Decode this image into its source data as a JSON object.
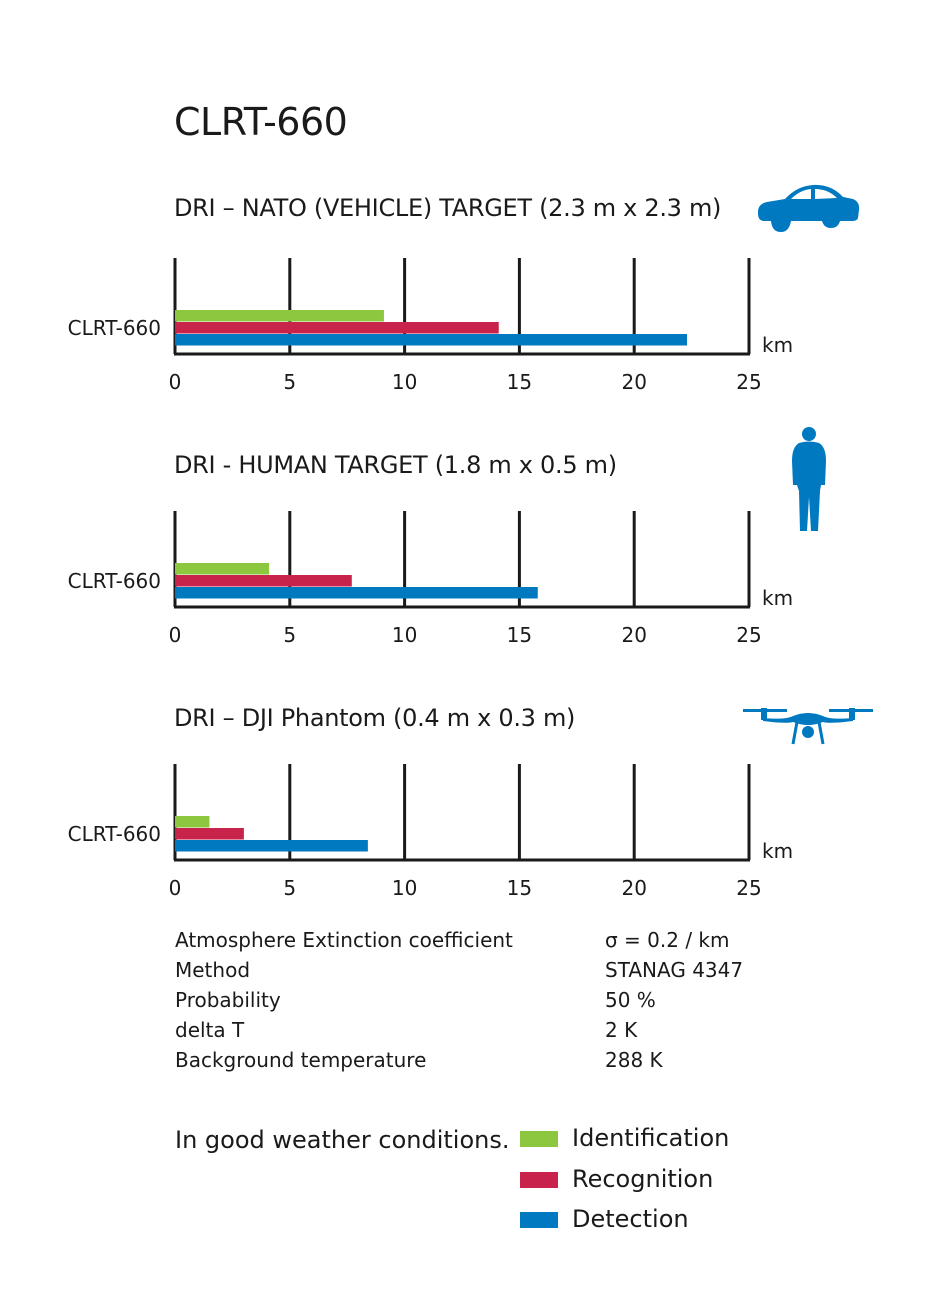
{
  "title": "CLRT-660",
  "colors": {
    "identification": "#8dc63f",
    "recognition": "#c8234b",
    "detection": "#0079c1",
    "axis": "#1a1a1a"
  },
  "chart_data": [
    {
      "type": "bar",
      "title": "DRI – NATO (VEHICLE) TARGET (2.3 m x 2.3 m)",
      "icon": "car-icon",
      "categories": [
        "CLRT-660"
      ],
      "series": [
        {
          "name": "Identification",
          "values": [
            9.1
          ]
        },
        {
          "name": "Recognition",
          "values": [
            14.1
          ]
        },
        {
          "name": "Detection",
          "values": [
            22.3
          ]
        }
      ],
      "xlabel": "km",
      "xlim": [
        0,
        25
      ],
      "xticks": [
        0,
        5,
        10,
        15,
        20,
        25
      ],
      "grid": true
    },
    {
      "type": "bar",
      "title": "DRI - HUMAN TARGET (1.8 m x 0.5 m)",
      "icon": "human-icon",
      "categories": [
        "CLRT-660"
      ],
      "series": [
        {
          "name": "Identification",
          "values": [
            4.1
          ]
        },
        {
          "name": "Recognition",
          "values": [
            7.7
          ]
        },
        {
          "name": "Detection",
          "values": [
            15.8
          ]
        }
      ],
      "xlabel": "km",
      "xlim": [
        0,
        25
      ],
      "xticks": [
        0,
        5,
        10,
        15,
        20,
        25
      ],
      "grid": true
    },
    {
      "type": "bar",
      "title": "DRI – DJI Phantom (0.4 m x 0.3 m)",
      "icon": "drone-icon",
      "categories": [
        "CLRT-660"
      ],
      "series": [
        {
          "name": "Identification",
          "values": [
            1.5
          ]
        },
        {
          "name": "Recognition",
          "values": [
            3.0
          ]
        },
        {
          "name": "Detection",
          "values": [
            8.4
          ]
        }
      ],
      "xlabel": "km",
      "xlim": [
        0,
        25
      ],
      "xticks": [
        0,
        5,
        10,
        15,
        20,
        25
      ],
      "grid": true
    }
  ],
  "conditions": [
    {
      "label": "Atmosphere Extinction coefficient",
      "value": "σ = 0.2 / km"
    },
    {
      "label": "Method",
      "value": "STANAG 4347"
    },
    {
      "label": "Probability",
      "value": "50 %"
    },
    {
      "label": "delta T",
      "value": "2 K"
    },
    {
      "label": "Background temperature",
      "value": "288 K"
    }
  ],
  "footnote": "In good weather conditions.",
  "legend": [
    {
      "label": "Identification",
      "color": "#8dc63f"
    },
    {
      "label": "Recognition",
      "color": "#c8234b"
    },
    {
      "label": "Detection",
      "color": "#0079c1"
    }
  ]
}
